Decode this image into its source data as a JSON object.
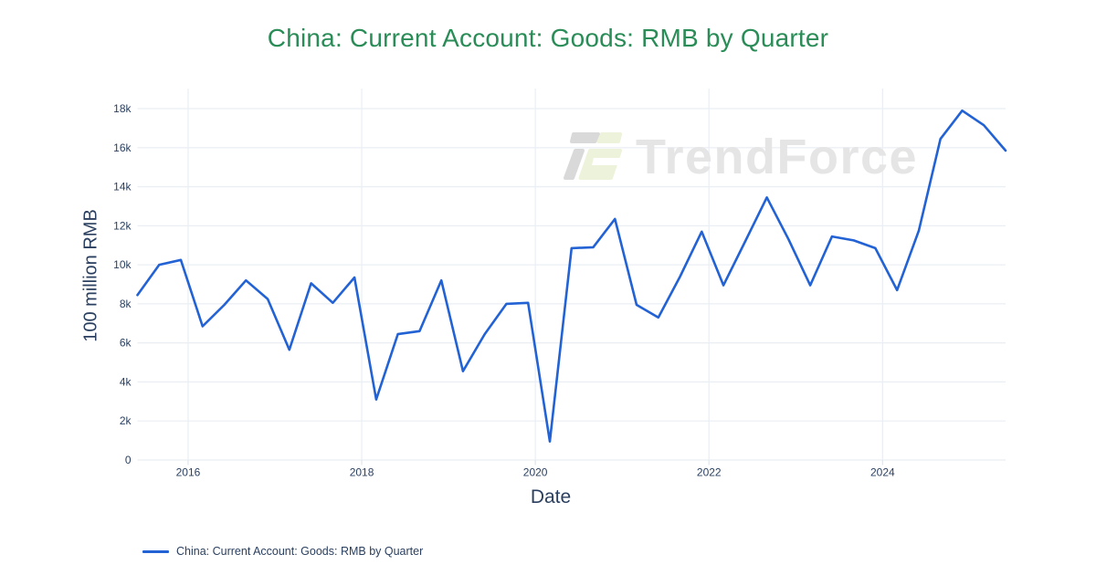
{
  "watermark": {
    "text": "TrendForce"
  },
  "colors": {
    "line": "#2262d4",
    "title": "#2a8c57",
    "axis_text": "#2a3f5f",
    "grid": "#ebeff4",
    "tick_mark": "#e2e7ee",
    "watermark_text": "#e5e5e5",
    "logo_gray": "#d9d9d9",
    "logo_green": "#edf2da",
    "background": "#ffffff"
  },
  "legend": {
    "items": [
      {
        "label": "China: Current Account: Goods: RMB by Quarter",
        "color": "#2262d4"
      }
    ]
  },
  "chart_data": {
    "type": "line",
    "title": "China: Current Account: Goods: RMB by Quarter",
    "xlabel": "Date",
    "ylabel": "100 million RMB",
    "legend_position": "bottom-left",
    "grid": true,
    "xlim": [
      "2015-06",
      "2025-06"
    ],
    "ylim": [
      0,
      19030
    ],
    "xticks": [
      {
        "value": 2016,
        "label": "2016"
      },
      {
        "value": 2018,
        "label": "2018"
      },
      {
        "value": 2020,
        "label": "2020"
      },
      {
        "value": 2022,
        "label": "2022"
      },
      {
        "value": 2024,
        "label": "2024"
      }
    ],
    "yticks": [
      {
        "value": 0,
        "label": "0"
      },
      {
        "value": 2000,
        "label": "2k"
      },
      {
        "value": 4000,
        "label": "4k"
      },
      {
        "value": 6000,
        "label": "6k"
      },
      {
        "value": 8000,
        "label": "8k"
      },
      {
        "value": 10000,
        "label": "10k"
      },
      {
        "value": 12000,
        "label": "12k"
      },
      {
        "value": 14000,
        "label": "14k"
      },
      {
        "value": 16000,
        "label": "16k"
      },
      {
        "value": 18000,
        "label": "18k"
      }
    ],
    "series": [
      {
        "name": "China: Current Account: Goods: RMB by Quarter",
        "color": "#2262d4",
        "x": [
          "2015-06",
          "2015-09",
          "2015-12",
          "2016-03",
          "2016-06",
          "2016-09",
          "2016-12",
          "2017-03",
          "2017-06",
          "2017-09",
          "2017-12",
          "2018-03",
          "2018-06",
          "2018-09",
          "2018-12",
          "2019-03",
          "2019-06",
          "2019-09",
          "2019-12",
          "2020-03",
          "2020-06",
          "2020-09",
          "2020-12",
          "2021-03",
          "2021-06",
          "2021-09",
          "2021-12",
          "2022-03",
          "2022-06",
          "2022-09",
          "2022-12",
          "2023-03",
          "2023-06",
          "2023-09",
          "2023-12",
          "2024-03",
          "2024-06",
          "2024-09",
          "2024-12",
          "2025-03",
          "2025-06"
        ],
        "values": [
          8450,
          10000,
          10250,
          6850,
          7950,
          9200,
          8250,
          5650,
          9050,
          8050,
          9350,
          3100,
          6450,
          6600,
          9200,
          4550,
          6450,
          8000,
          8050,
          950,
          10850,
          10900,
          12350,
          7950,
          7300,
          9400,
          11700,
          8950,
          11200,
          13450,
          11300,
          8950,
          11450,
          11250,
          10850,
          8700,
          11750,
          16450,
          17900,
          17150,
          15850
        ]
      }
    ]
  }
}
